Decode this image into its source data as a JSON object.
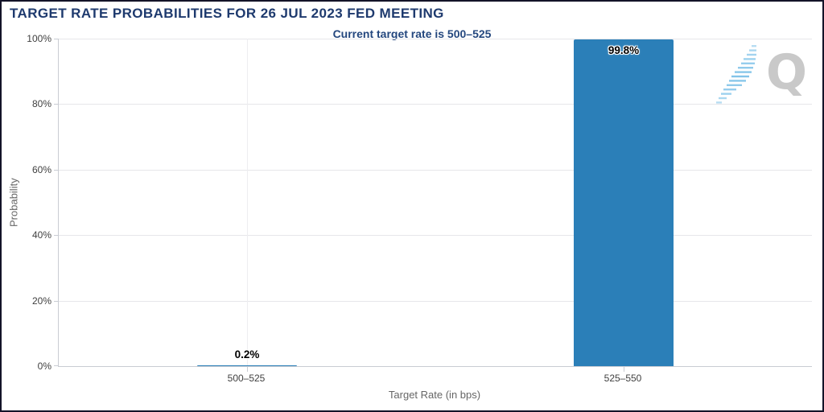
{
  "chart_data": {
    "type": "bar",
    "title": "TARGET RATE PROBABILITIES FOR 26 JUL 2023 FED MEETING",
    "subtitle": "Current target rate is 500–525",
    "categories": [
      "500–525",
      "525–550"
    ],
    "values": [
      0.2,
      99.8
    ],
    "data_labels": [
      "0.2%",
      "99.8%"
    ],
    "xlabel": "Target Rate (in bps)",
    "ylabel": "Probability",
    "ylim": [
      0,
      100
    ],
    "yticks": [
      "0%",
      "20%",
      "40%",
      "60%",
      "80%",
      "100%"
    ],
    "grid": true,
    "legend_position": "none",
    "bar_color": "#2b7fb8"
  },
  "watermark": {
    "letter": "Q"
  },
  "colors": {
    "title_navy": "#1e3a6e",
    "subtitle_navy": "#24477e",
    "bar_blue": "#2b7fb8",
    "gridline": "#e6e6ea",
    "axis_line": "#c9ccd3",
    "tick_text": "#404040",
    "axis_title_text": "#666666",
    "watermark_gray": "#c9c9c9",
    "watermark_blue": "#7cc1e8",
    "frame_border": "#131328"
  }
}
